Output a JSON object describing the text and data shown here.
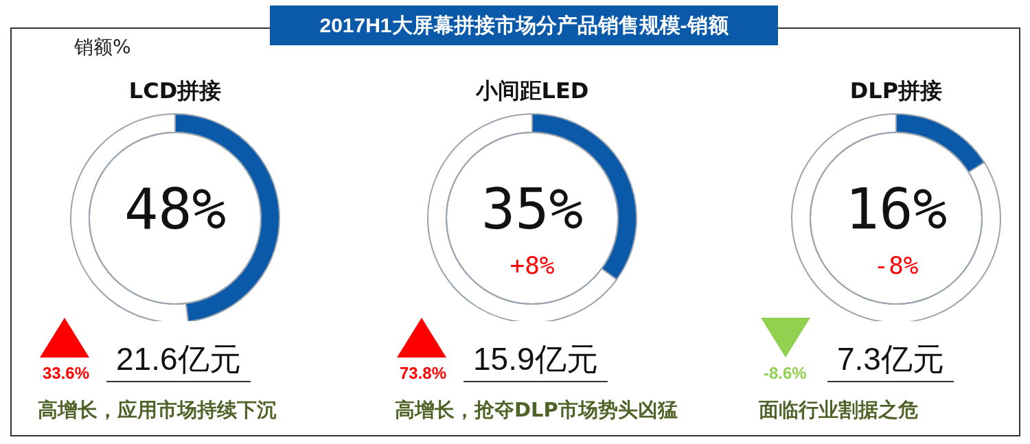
{
  "chart_data": [
    {
      "type": "other",
      "title": "2017H1大屏幕拼接市场分产品销售规模-销额",
      "annotations": [
        "销额%"
      ]
    },
    {
      "type": "donut",
      "title": "LCD拼接",
      "categories": [
        null,
        null
      ],
      "values": [
        48,
        52
      ],
      "colors": [
        "#0b5aaa",
        "#ffffff"
      ],
      "value_labels": [
        "48%",
        null
      ],
      "annotations": [
        "33.6%",
        "21.6亿元",
        "高增长，应用市场持续下沉"
      ]
    },
    {
      "type": "donut",
      "title": "小间距LED",
      "categories": [
        null,
        null
      ],
      "values": [
        35,
        65
      ],
      "colors": [
        "#0b5aaa",
        "#ffffff"
      ],
      "value_labels": [
        "35%",
        null
      ],
      "annotations": [
        "+8%",
        "73.8%",
        "15.9亿元",
        "高增长，抢夺DLP市场势头凶猛"
      ]
    },
    {
      "type": "donut",
      "title": "DLP拼接",
      "categories": [
        null,
        null
      ],
      "values": [
        16,
        84
      ],
      "colors": [
        "#0b5aaa",
        "#ffffff"
      ],
      "value_labels": [
        "16%",
        null
      ],
      "annotations": [
        "-8%",
        "-8.6%",
        "7.3亿元",
        "面临行业割据之危"
      ]
    }
  ]
}
